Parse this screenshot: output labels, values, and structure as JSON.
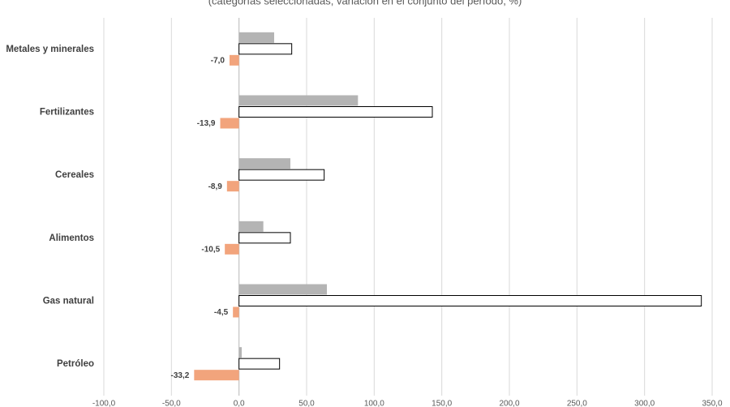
{
  "chart_data": {
    "type": "hbar",
    "subtitle": "(categorías seleccionadas; variación en el conjunto del período, %)",
    "categories": [
      "Metales y minerales",
      "Fertilizantes",
      "Cereales",
      "Alimentos",
      "Gas natural",
      "Petróleo"
    ],
    "series": [
      {
        "color": "#b4b4b4",
        "values": [
          26,
          88,
          38,
          18,
          65,
          2
        ]
      },
      {
        "color": "#ffffff",
        "outline": "#000000",
        "values": [
          39,
          143,
          63,
          38,
          342,
          30
        ]
      },
      {
        "color": "#f2a47c",
        "values": [
          -7.0,
          -13.9,
          -8.9,
          -10.5,
          -4.5,
          -33.2
        ],
        "value_labels": [
          "-7,0",
          "-13,9",
          "-8,9",
          "-10,5",
          "-4,5",
          "-33,2"
        ]
      }
    ],
    "xlim": [
      -100,
      350
    ],
    "xticks": [
      {
        "value": -100,
        "label": "-100,0"
      },
      {
        "value": -50,
        "label": "-50,0"
      },
      {
        "value": 0,
        "label": "0,0"
      },
      {
        "value": 50,
        "label": "50,0"
      },
      {
        "value": 100,
        "label": "100,0"
      },
      {
        "value": 150,
        "label": "150,0"
      },
      {
        "value": 200,
        "label": "200,0"
      },
      {
        "value": 250,
        "label": "250,0"
      },
      {
        "value": 300,
        "label": "300,0"
      },
      {
        "value": 350,
        "label": "350,0"
      }
    ],
    "grid": true
  }
}
